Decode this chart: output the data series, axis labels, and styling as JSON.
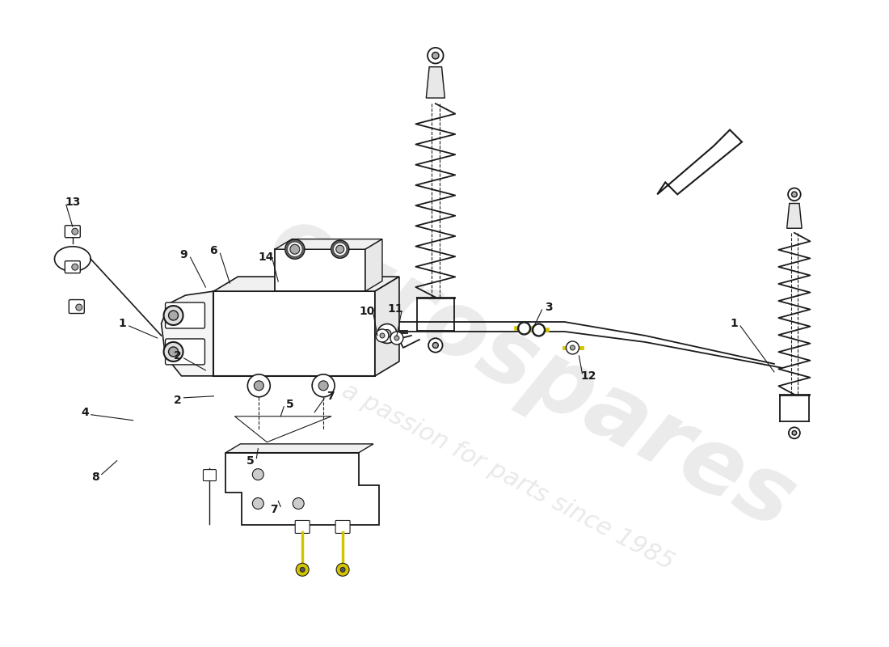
{
  "bg_color": "#ffffff",
  "line_color": "#1a1a1a",
  "light_gray": "#cccccc",
  "medium_gray": "#aaaaaa",
  "dark_gray": "#555555",
  "yellow_highlight": "#d4c400",
  "watermark_color": "#d8d8d8",
  "watermark_text1": "eurospares",
  "watermark_text2": "a passion for parts since 1985",
  "figsize": [
    11.0,
    8.0
  ],
  "dpi": 100
}
